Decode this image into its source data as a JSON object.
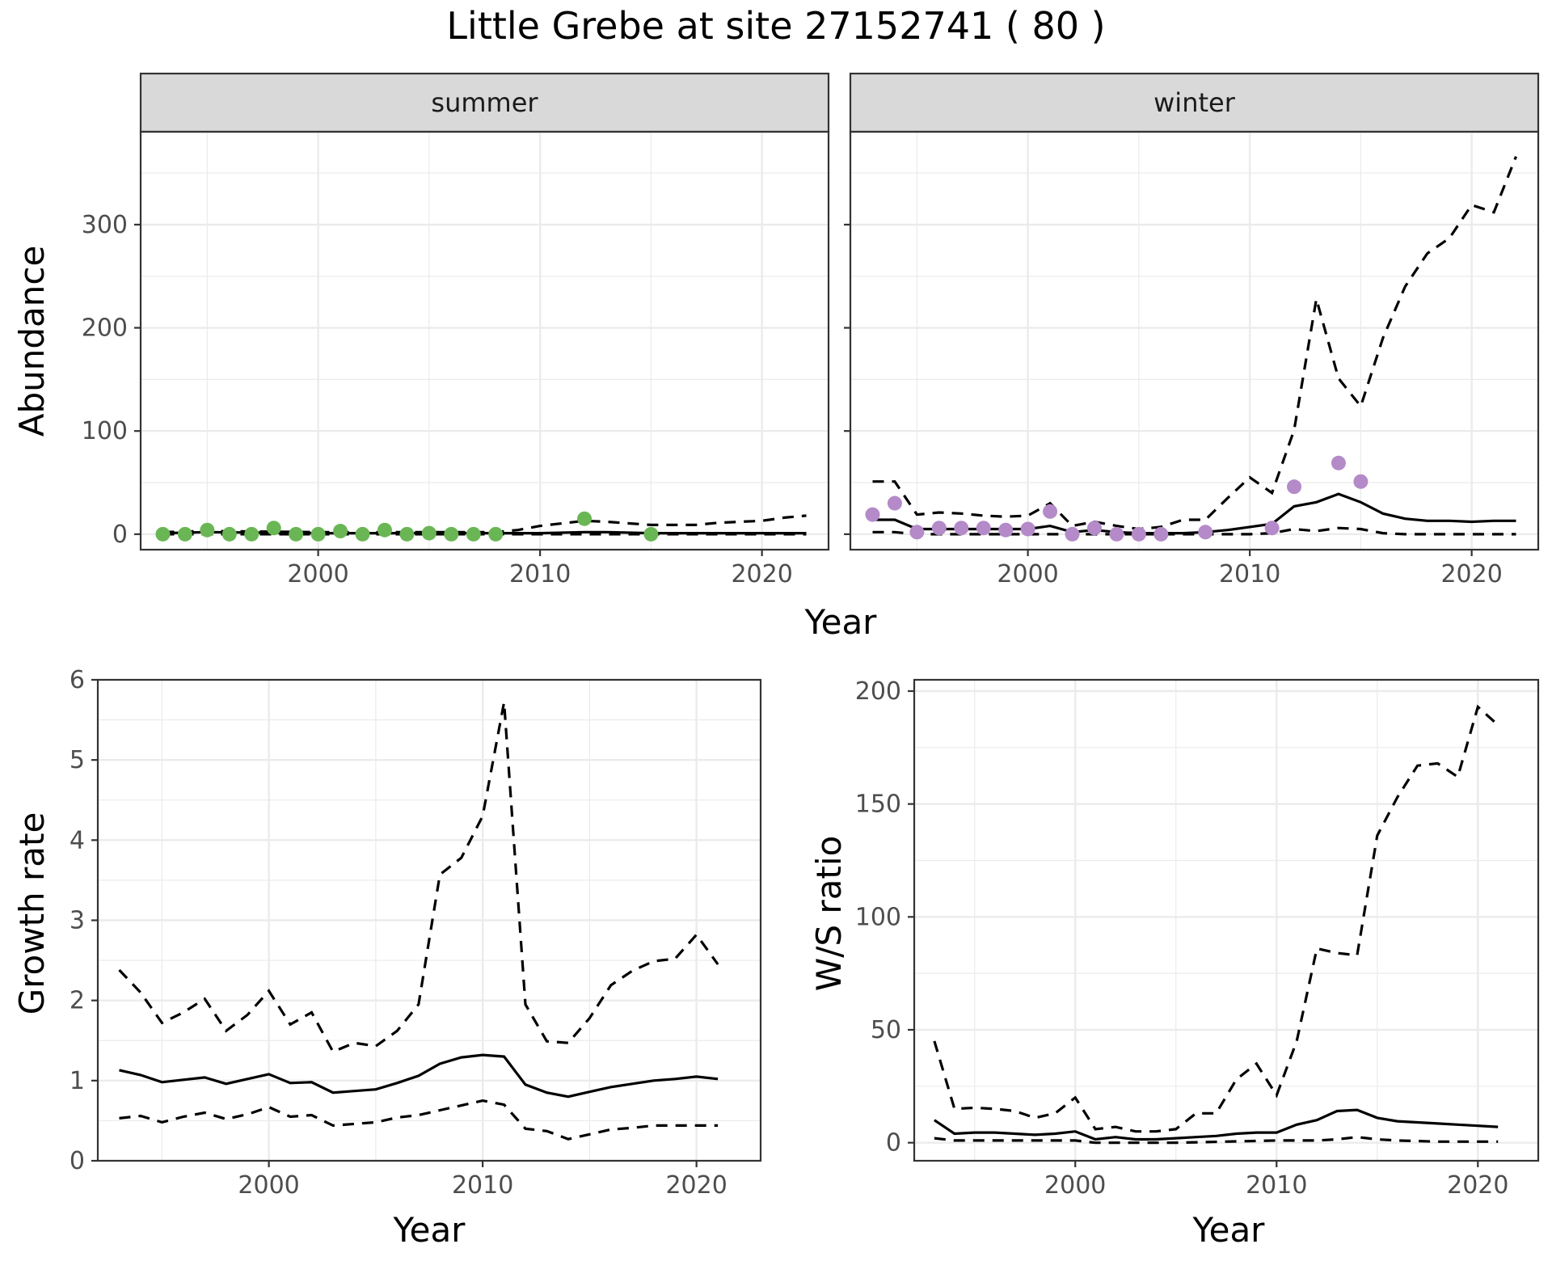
{
  "title": "Little Grebe at site 27152741 ( 80 )",
  "colors": {
    "summer_points": "#6ab655",
    "winter_points": "#b48ac8",
    "lines": "#000000"
  },
  "chart_data": [
    {
      "type": "scatter",
      "facet": "summer",
      "strip_label": "summer",
      "xlabel": "Year",
      "ylabel": "Abundance",
      "xlim": [
        1992,
        2023
      ],
      "ylim": [
        -15,
        390
      ],
      "x_ticks": [
        2000,
        2010,
        2020
      ],
      "y_ticks": [
        0,
        100,
        200,
        300
      ],
      "grid": true,
      "points": {
        "x": [
          1993,
          1994,
          1995,
          1996,
          1997,
          1998,
          1999,
          2000,
          2001,
          2002,
          2003,
          2004,
          2005,
          2006,
          2007,
          2008,
          2012,
          2015
        ],
        "y": [
          0,
          0,
          4,
          0,
          0,
          6,
          0,
          0,
          3,
          0,
          4,
          0,
          1,
          0,
          0,
          0,
          15,
          0
        ]
      },
      "mean": {
        "x": [
          1993,
          1995,
          2000,
          2005,
          2008,
          2010,
          2012,
          2013,
          2015,
          2018,
          2020,
          2022
        ],
        "y": [
          1,
          2,
          1,
          1,
          1,
          1,
          2,
          2,
          1,
          1,
          1,
          1
        ]
      },
      "upper": {
        "x": [
          1993,
          1995,
          2000,
          2005,
          2008,
          2009,
          2010,
          2012,
          2013,
          2015,
          2016,
          2017,
          2018,
          2019,
          2020,
          2021,
          2022
        ],
        "y": [
          2,
          3,
          2,
          2,
          2,
          4,
          8,
          13,
          12,
          9,
          9,
          9,
          11,
          12,
          13,
          16,
          18
        ]
      },
      "lower": {
        "x": [
          1993,
          2022
        ],
        "y": [
          0,
          0
        ]
      }
    },
    {
      "type": "scatter",
      "facet": "winter",
      "strip_label": "winter",
      "xlabel": "Year",
      "ylabel": "Abundance",
      "xlim": [
        1992,
        2023
      ],
      "ylim": [
        -15,
        390
      ],
      "x_ticks": [
        2000,
        2010,
        2020
      ],
      "y_ticks": [
        0,
        100,
        200,
        300
      ],
      "grid": true,
      "points": {
        "x": [
          1993,
          1994,
          1995,
          1996,
          1997,
          1998,
          1999,
          2000,
          2001,
          2002,
          2003,
          2004,
          2005,
          2006,
          2008,
          2011,
          2012,
          2014,
          2015
        ],
        "y": [
          19,
          30,
          2,
          6,
          6,
          6,
          4,
          5,
          22,
          0,
          6,
          0,
          0,
          0,
          2,
          6,
          46,
          69,
          51
        ]
      },
      "mean": {
        "x": [
          1993,
          1994,
          1995,
          1996,
          1997,
          1998,
          1999,
          2000,
          2001,
          2002,
          2003,
          2004,
          2005,
          2006,
          2007,
          2008,
          2009,
          2010,
          2011,
          2012,
          2013,
          2014,
          2015,
          2016,
          2017,
          2018,
          2019,
          2020,
          2021,
          2022
        ],
        "y": [
          14,
          14,
          5,
          5,
          5,
          5,
          5,
          5,
          8,
          2,
          4,
          2,
          1,
          1,
          1,
          2,
          4,
          7,
          10,
          27,
          31,
          39,
          31,
          20,
          15,
          13,
          13,
          12,
          13,
          13
        ]
      },
      "upper": {
        "x": [
          1993,
          1994,
          1995,
          1996,
          1997,
          1998,
          1999,
          2000,
          2001,
          2002,
          2003,
          2004,
          2005,
          2006,
          2007,
          2008,
          2009,
          2010,
          2011,
          2012,
          2013,
          2014,
          2015,
          2016,
          2017,
          2018,
          2019,
          2020,
          2021,
          2022
        ],
        "y": [
          51,
          51,
          19,
          21,
          20,
          18,
          17,
          18,
          30,
          8,
          12,
          8,
          5,
          7,
          14,
          14,
          35,
          55,
          40,
          101,
          228,
          151,
          124,
          190,
          240,
          272,
          287,
          319,
          312,
          366
        ]
      },
      "lower": {
        "x": [
          1993,
          1994,
          1995,
          2000,
          2005,
          2010,
          2011,
          2012,
          2013,
          2014,
          2015,
          2016,
          2017,
          2020,
          2022
        ],
        "y": [
          2,
          2,
          0,
          0,
          0,
          0,
          1,
          5,
          3,
          6,
          5,
          1,
          0,
          0,
          0
        ]
      }
    },
    {
      "type": "line",
      "xlabel": "Year",
      "ylabel": "Growth rate",
      "xlim": [
        1992,
        2023
      ],
      "ylim": [
        0,
        6
      ],
      "x_ticks": [
        2000,
        2010,
        2020
      ],
      "y_ticks": [
        0,
        1,
        2,
        3,
        4,
        5,
        6
      ],
      "grid": true,
      "mean": {
        "x": [
          1993,
          1994,
          1995,
          1996,
          1997,
          1998,
          1999,
          2000,
          2001,
          2002,
          2003,
          2004,
          2005,
          2006,
          2007,
          2008,
          2009,
          2010,
          2011,
          2012,
          2013,
          2014,
          2015,
          2016,
          2017,
          2018,
          2019,
          2020,
          2021
        ],
        "y": [
          1.13,
          1.07,
          0.98,
          1.01,
          1.04,
          0.96,
          1.02,
          1.08,
          0.97,
          0.98,
          0.85,
          0.87,
          0.89,
          0.97,
          1.06,
          1.21,
          1.29,
          1.32,
          1.3,
          0.95,
          0.85,
          0.8,
          0.86,
          0.92,
          0.96,
          1.0,
          1.02,
          1.05,
          1.02
        ]
      },
      "upper": {
        "x": [
          1993,
          1994,
          1995,
          1996,
          1997,
          1998,
          1999,
          2000,
          2001,
          2002,
          2003,
          2004,
          2005,
          2006,
          2007,
          2008,
          2009,
          2010,
          2011,
          2012,
          2013,
          2014,
          2015,
          2016,
          2017,
          2018,
          2019,
          2020,
          2021
        ],
        "y": [
          2.38,
          2.1,
          1.72,
          1.85,
          2.02,
          1.62,
          1.82,
          2.12,
          1.7,
          1.85,
          1.36,
          1.47,
          1.43,
          1.62,
          1.95,
          3.57,
          3.78,
          4.3,
          5.72,
          1.95,
          1.49,
          1.47,
          1.78,
          2.19,
          2.37,
          2.49,
          2.52,
          2.82,
          2.45
        ]
      },
      "lower": {
        "x": [
          1993,
          1994,
          1995,
          1996,
          1997,
          1998,
          1999,
          2000,
          2001,
          2002,
          2003,
          2004,
          2005,
          2006,
          2007,
          2008,
          2009,
          2010,
          2011,
          2012,
          2013,
          2014,
          2015,
          2016,
          2017,
          2018,
          2019,
          2020,
          2021
        ],
        "y": [
          0.53,
          0.56,
          0.48,
          0.55,
          0.6,
          0.52,
          0.58,
          0.67,
          0.55,
          0.57,
          0.44,
          0.46,
          0.48,
          0.54,
          0.57,
          0.63,
          0.69,
          0.75,
          0.7,
          0.4,
          0.37,
          0.27,
          0.33,
          0.39,
          0.41,
          0.44,
          0.44,
          0.44,
          0.44
        ]
      }
    },
    {
      "type": "line",
      "xlabel": "Year",
      "ylabel": "W/S ratio",
      "xlim": [
        1992,
        2023
      ],
      "ylim": [
        -8,
        205
      ],
      "x_ticks": [
        2000,
        2010,
        2020
      ],
      "y_ticks": [
        0,
        50,
        100,
        150,
        200
      ],
      "grid": true,
      "mean": {
        "x": [
          1993,
          1994,
          1995,
          1996,
          1997,
          1998,
          1999,
          2000,
          2001,
          2002,
          2003,
          2004,
          2005,
          2006,
          2007,
          2008,
          2009,
          2010,
          2011,
          2012,
          2013,
          2014,
          2015,
          2016,
          2017,
          2018,
          2019,
          2020,
          2021
        ],
        "y": [
          10,
          4,
          4.5,
          4.5,
          4,
          3.5,
          4,
          5,
          1.5,
          2.5,
          1.5,
          1.5,
          2,
          2.5,
          3,
          4,
          4.5,
          4.5,
          8,
          10,
          14,
          14.5,
          11,
          9.5,
          9,
          8.5,
          8,
          7.5,
          7
        ]
      },
      "upper": {
        "x": [
          1993,
          1994,
          1995,
          1996,
          1997,
          1998,
          1999,
          2000,
          2001,
          2002,
          2003,
          2004,
          2005,
          2006,
          2007,
          2008,
          2009,
          2010,
          2011,
          2012,
          2013,
          2014,
          2015,
          2016,
          2017,
          2018,
          2019,
          2020,
          2021
        ],
        "y": [
          45,
          15,
          15.5,
          15,
          14,
          11,
          13,
          20,
          6,
          7,
          5,
          5,
          6,
          13,
          13,
          28,
          35,
          21,
          45,
          86,
          84,
          83,
          136,
          153,
          167,
          168,
          162,
          193,
          185
        ]
      },
      "lower": {
        "x": [
          1993,
          1994,
          1995,
          2000,
          2001,
          2005,
          2010,
          2012,
          2013,
          2014,
          2015,
          2016,
          2018,
          2021
        ],
        "y": [
          2,
          1,
          1,
          1,
          0,
          0,
          1,
          1,
          1.5,
          2.5,
          1.5,
          1,
          0.5,
          0.5
        ]
      }
    }
  ]
}
